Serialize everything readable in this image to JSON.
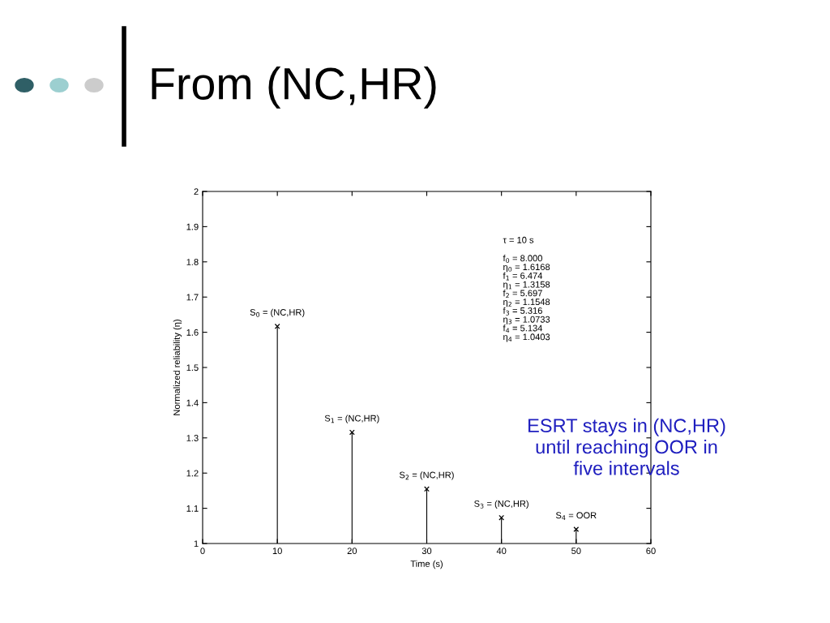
{
  "chart_data": {
    "type": "lollipop",
    "title": "From (NC,HR)",
    "xlabel": "Time (s)",
    "ylabel": "Normalized reliability (η)",
    "x": [
      10,
      20,
      30,
      40,
      50
    ],
    "values": [
      1.6168,
      1.3158,
      1.1548,
      1.0733,
      1.0403
    ],
    "color": "#000000",
    "marker": "cross",
    "xlim": [
      0,
      60
    ],
    "xticks": [
      0,
      10,
      20,
      30,
      40,
      50,
      60
    ],
    "ylim": [
      1,
      2
    ],
    "yticks": [
      1,
      1.1,
      1.2,
      1.3,
      1.4,
      1.5,
      1.6,
      1.7,
      1.8,
      1.9,
      2
    ],
    "grid": false,
    "annotations": [
      {
        "text": "S$_{0}$ = (NC,HR)",
        "x": 10,
        "y": 1.6168
      },
      {
        "text": "S$_{1}$ = (NC,HR)",
        "x": 20,
        "y": 1.3158
      },
      {
        "text": "S$_{2}$ = (NC,HR)",
        "x": 30,
        "y": 1.1548
      },
      {
        "text": "S$_{3}$ = (NC,HR)",
        "x": 40,
        "y": 1.0733
      },
      {
        "text": "S$_{4}$ = OOR",
        "x": 50,
        "y": 1.0403
      },
      "τ = 10 s",
      "f$_{0}$ = 8.000\nη$_{0}$ = 1.6168\nf$_{1}$ = 6.474\nη$_{1}$ = 1.3158\nf$_{2}$ = 5.697\nη$_{2}$ = 1.1548\nf$_{3}$ = 5.316\nη$_{3}$ = 1.0733\nf$_{4}$ = 5.134\nη$_{4}$ = 1.0403",
      "ESRT stays in (NC,HR)\nuntil reaching OOR in\nfive intervals"
    ]
  }
}
